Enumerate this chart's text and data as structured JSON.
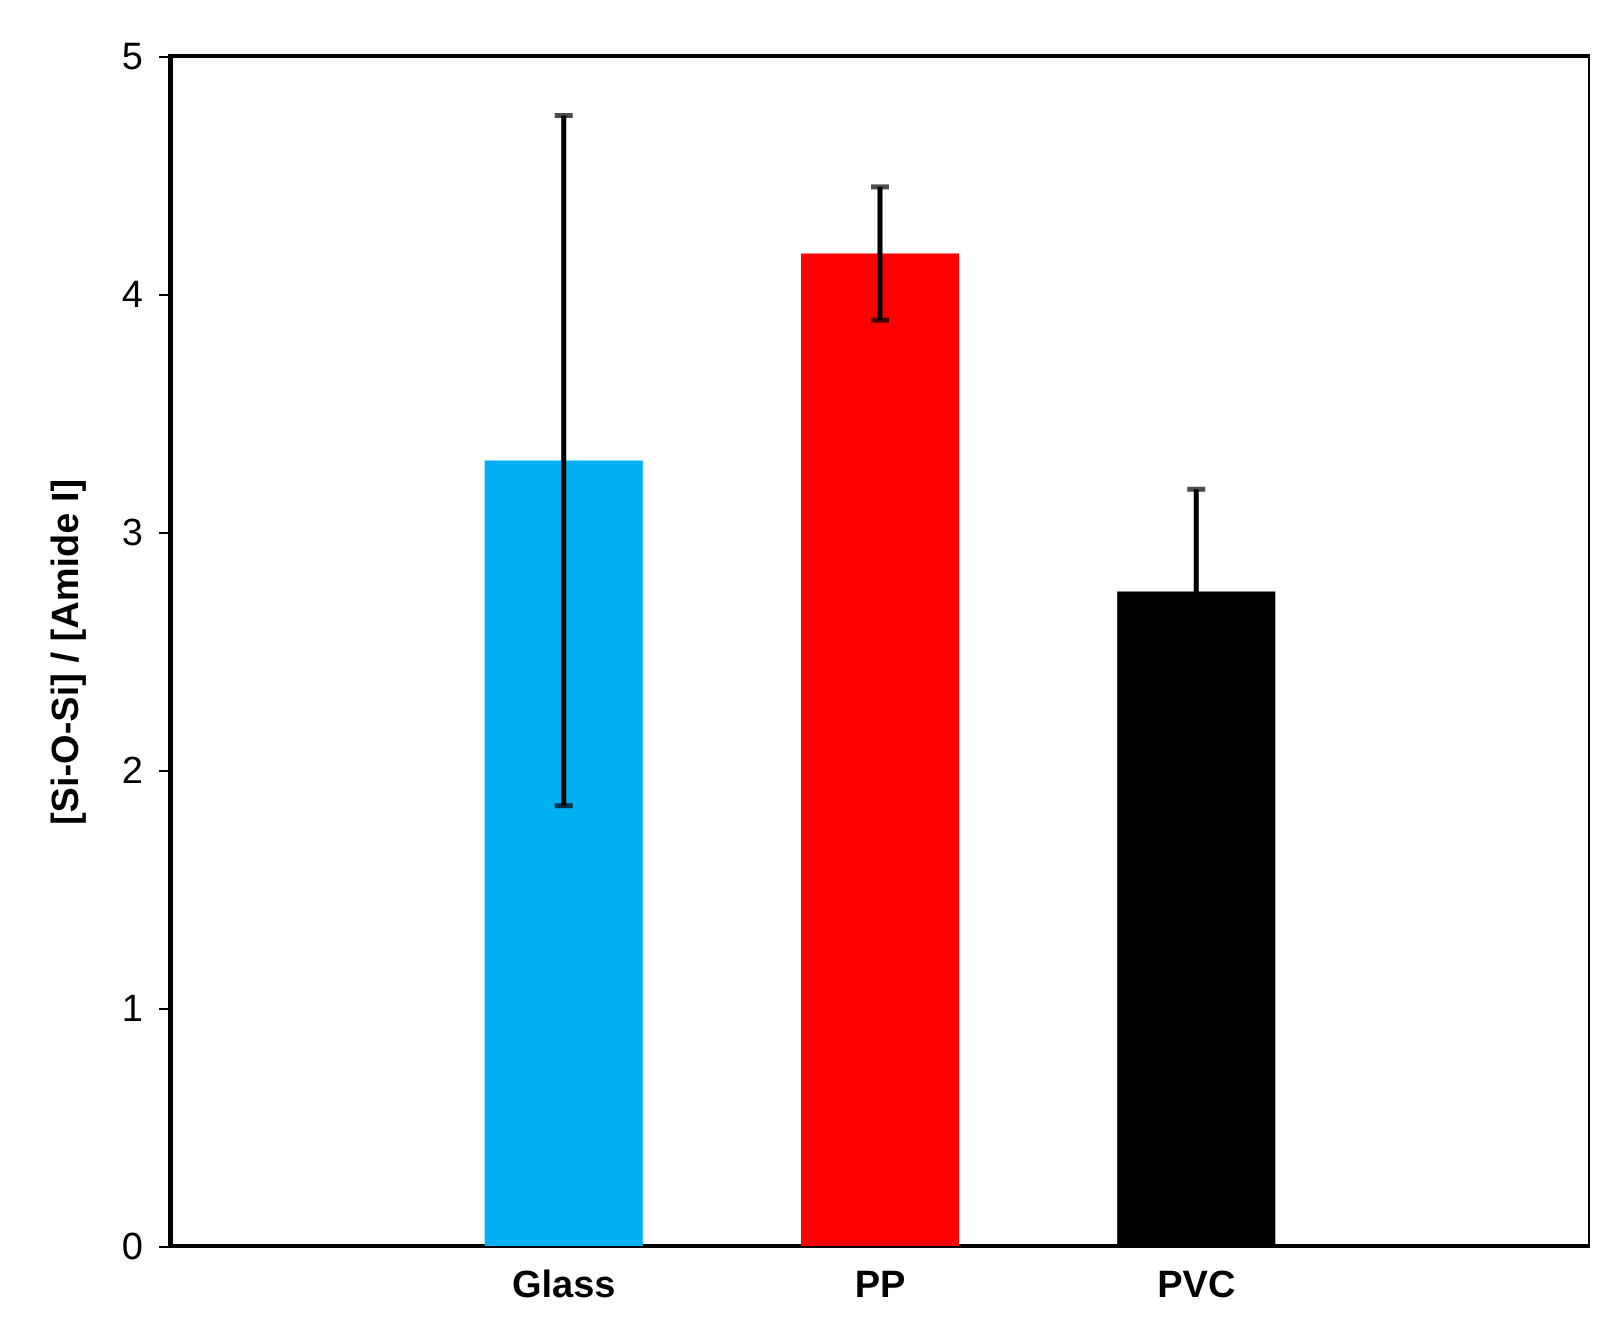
{
  "chart_data": {
    "type": "bar",
    "ylabel": "[Si-O-Si] / [Amide I]",
    "categories": [
      "Glass",
      "PP",
      "PVC"
    ],
    "values": [
      3.3,
      4.17,
      2.75
    ],
    "colors": [
      "#00b0f0",
      "#ff0000",
      "#000000"
    ],
    "errors": [
      1.45,
      0.28,
      0.43
    ],
    "ylim": [
      0,
      5
    ],
    "yticks": [
      0,
      1,
      2,
      3,
      4,
      5
    ],
    "grid": false
  }
}
